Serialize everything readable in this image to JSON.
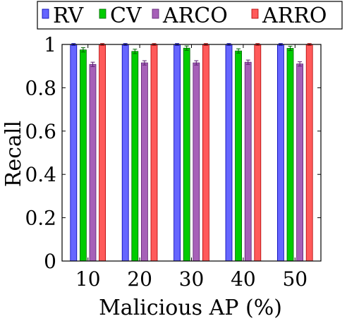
{
  "chart_data": {
    "type": "bar",
    "xlabel": "Malicious AP (%)",
    "ylabel": "Recall",
    "categories": [
      "10",
      "20",
      "30",
      "40",
      "50"
    ],
    "ylim": [
      0,
      1
    ],
    "yticks": [
      0,
      0.2,
      0.4,
      0.6,
      0.8,
      1
    ],
    "ytick_labels": [
      "0",
      "0.2",
      "0.4",
      "0.6",
      "0.8",
      "1"
    ],
    "grid": false,
    "legend_position": "top",
    "error_bars": true,
    "series": [
      {
        "name": "RV",
        "color": "#6666ff",
        "stroke": "#0000b0",
        "values": [
          1.0,
          1.0,
          1.0,
          1.0,
          1.0
        ],
        "errors": [
          0.004,
          0.004,
          0.004,
          0.004,
          0.004
        ]
      },
      {
        "name": "CV",
        "color": "#00cc00",
        "stroke": "#006400",
        "values": [
          0.975,
          0.968,
          0.983,
          0.97,
          0.982
        ],
        "errors": [
          0.01,
          0.01,
          0.01,
          0.01,
          0.01
        ]
      },
      {
        "name": "ARCO",
        "color": "#a660b8",
        "stroke": "#5a2070",
        "values": [
          0.908,
          0.915,
          0.915,
          0.918,
          0.91
        ],
        "errors": [
          0.01,
          0.01,
          0.01,
          0.01,
          0.01
        ]
      },
      {
        "name": "ARRO",
        "color": "#ff5a5a",
        "stroke": "#b00000",
        "values": [
          1.0,
          1.0,
          1.0,
          1.0,
          1.0
        ],
        "errors": [
          0.004,
          0.004,
          0.004,
          0.004,
          0.004
        ]
      }
    ]
  }
}
